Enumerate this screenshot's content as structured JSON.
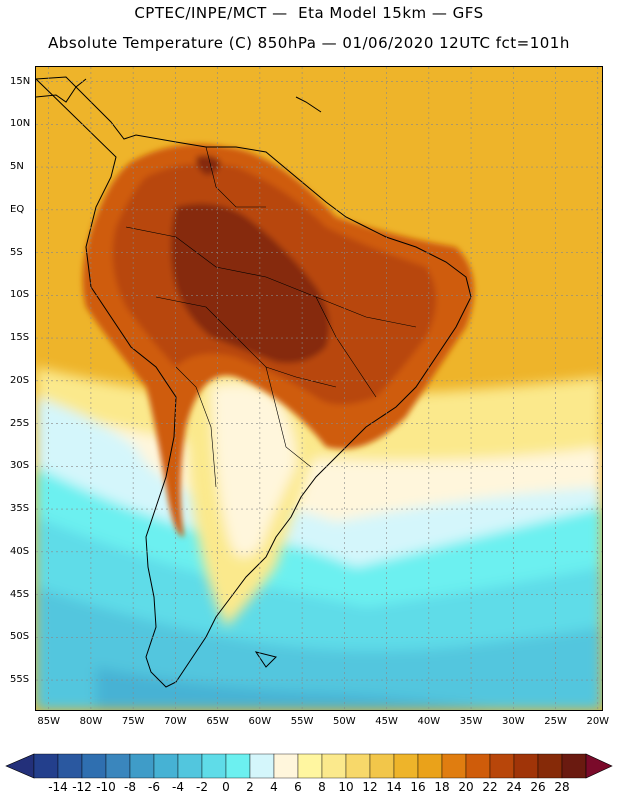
{
  "title_line1": "CPTEC/INPE/MCT —  Eta Model 15km — GFS",
  "title_line2": "Absolute Temperature (C) 850hPa — 01/06/2020 12UTC fct=101h",
  "lat_labels": [
    "15N",
    "10N",
    "5N",
    "EQ",
    "5S",
    "10S",
    "15S",
    "20S",
    "25S",
    "30S",
    "35S",
    "40S",
    "45S",
    "50S",
    "55S"
  ],
  "lon_labels": [
    "85W",
    "80W",
    "75W",
    "70W",
    "65W",
    "60W",
    "55W",
    "50W",
    "45W",
    "40W",
    "35W",
    "30W",
    "25W",
    "20W"
  ],
  "colorbar": {
    "labels": [
      "-14",
      "-12",
      "-10",
      "-8",
      "-6",
      "-4",
      "-2",
      "0",
      "2",
      "4",
      "6",
      "8",
      "10",
      "12",
      "14",
      "16",
      "18",
      "20",
      "22",
      "24",
      "26",
      "28"
    ],
    "colors": [
      "#233f8c",
      "#2a58a0",
      "#2f6fb0",
      "#3a86bd",
      "#3f9cc8",
      "#46b2d4",
      "#52c6de",
      "#5fdce8",
      "#6cf0f0",
      "#d4f6fb",
      "#fff6dc",
      "#fff6a0",
      "#fbe98c",
      "#f7d86a",
      "#f2c64a",
      "#eeb42a",
      "#eaa21a",
      "#e07d10",
      "#cf5c0a",
      "#b8460a",
      "#a03408",
      "#862a08",
      "#6a1a10"
    ],
    "under_color": "#23307a",
    "over_color": "#7a0a2a"
  },
  "field_colors": {
    "ocean_warm": "#eeb42a",
    "ocean_mid": "#f2c64a",
    "land_hot": "#b8460a",
    "land_hottest": "#862a08",
    "land_warm": "#cf5c0a",
    "cool_pale": "#fff6dc",
    "cool_cream": "#fbe98c",
    "cold_light": "#d4f6fb",
    "cold_cyan": "#6cf0f0",
    "cold_aqua": "#5fdce8",
    "cold_blue": "#52c6de",
    "cold_deep": "#46b2d4"
  }
}
